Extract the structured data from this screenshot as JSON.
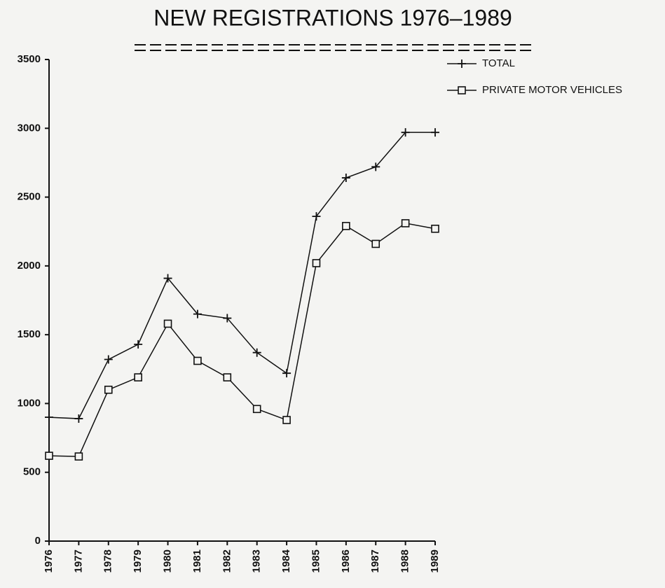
{
  "chart_data": {
    "type": "line",
    "title": "NEW REGISTRATIONS 1976–1989",
    "categories": [
      "1976",
      "1977",
      "1978",
      "1979",
      "1980",
      "1981",
      "1982",
      "1983",
      "1984",
      "1985",
      "1986",
      "1987",
      "1988",
      "1989"
    ],
    "series": [
      {
        "name": "TOTAL",
        "color": "#111111",
        "marker": "plus",
        "values": [
          900,
          890,
          1320,
          1430,
          1910,
          1650,
          1620,
          1370,
          1220,
          2360,
          2640,
          2720,
          2970,
          2970
        ]
      },
      {
        "name": "PRIVATE MOTOR VEHICLES",
        "color": "#111111",
        "marker": "square",
        "values": [
          620,
          615,
          1100,
          1190,
          1580,
          1310,
          1190,
          960,
          880,
          2020,
          2290,
          2160,
          2310,
          2270
        ]
      }
    ],
    "ylim": [
      0,
      3500
    ],
    "yticks": [
      0,
      500,
      1000,
      1500,
      2000,
      2500,
      3000,
      3500
    ],
    "grid": false,
    "legend": "upper right"
  }
}
